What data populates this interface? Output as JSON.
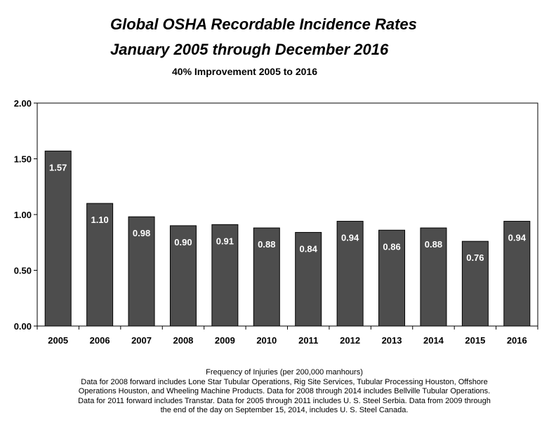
{
  "chart_data": {
    "type": "bar",
    "title": "Global OSHA Recordable Incidence Rates",
    "subtitle_line": "January 2005 through December 2016",
    "subtitle": "40% Improvement 2005 to 2016",
    "categories": [
      "2005",
      "2006",
      "2007",
      "2008",
      "2009",
      "2010",
      "2011",
      "2012",
      "2013",
      "2014",
      "2015",
      "2016"
    ],
    "values": [
      1.57,
      1.1,
      0.98,
      0.9,
      0.91,
      0.88,
      0.84,
      0.94,
      0.86,
      0.88,
      0.76,
      0.94
    ],
    "data_labels": [
      "1.57",
      "1.10",
      "0.98",
      "0.90",
      "0.91",
      "0.88",
      "0.84",
      "0.94",
      "0.86",
      "0.88",
      "0.76",
      "0.94"
    ],
    "yticks": [
      "0.00",
      "0.50",
      "1.00",
      "1.50",
      "2.00"
    ],
    "ylim": [
      0,
      2
    ],
    "xlabel": "",
    "ylabel": "",
    "grid": false,
    "legend": "none",
    "bar_color": "#4d4d4d",
    "label_color": "#ffffff"
  },
  "footnote": {
    "lines": [
      "Frequency of Injuries (per 200,000 manhours)",
      "Data for 2008 forward includes Lone Star Tubular Operations, Rig Site Services, Tubular Processing  Houston, Offshore",
      "Operations Houston, and Wheeling Machine Products.  Data for 2008 through 2014 includes Bellville Tubular Operations.",
      "Data for 2011 forward includes Transtar.  Data for 2005 through 2011 includes U. S. Steel Serbia.  Data from 2009 through",
      "the end of the day on September 15, 2014, includes U. S. Steel Canada."
    ]
  }
}
